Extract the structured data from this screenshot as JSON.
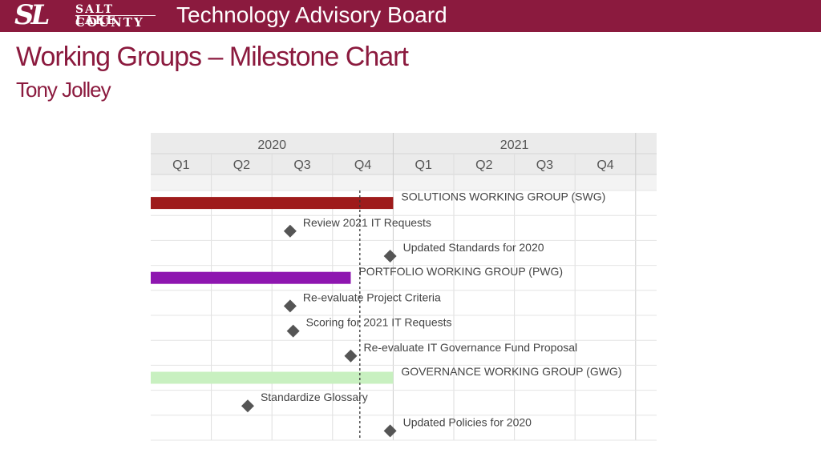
{
  "header": {
    "logo_mark": "SL",
    "logo_line1": "SALT LAKE",
    "logo_line2": "COUNTY",
    "board_title": "Technology Advisory Board"
  },
  "title": "Working Groups – Milestone Chart",
  "author": "Tony Jolley",
  "colors": {
    "header_bg": "#8b1a3e",
    "title_text": "#8b1a3e",
    "swg_bar": "#9e1b1b",
    "pwg_bar": "#8e16b0",
    "gwg_bar": "#c8f0c0",
    "milestone": "#555555"
  },
  "chart_data": {
    "type": "gantt",
    "years": [
      "2020",
      "2021"
    ],
    "quarters": [
      "Q1",
      "Q2",
      "Q3",
      "Q4",
      "Q1",
      "Q2",
      "Q3",
      "Q4"
    ],
    "today_marker": 3.45,
    "grid": true,
    "rows": [
      {
        "kind": "group",
        "label": "SOLUTIONS WORKING GROUP (SWG)",
        "start": 0,
        "end": 4,
        "color": "#9e1b1b"
      },
      {
        "kind": "milestone",
        "label": "Review 2021 IT Requests",
        "at": 2.3
      },
      {
        "kind": "milestone",
        "label": "Updated Standards for 2020",
        "at": 3.95
      },
      {
        "kind": "group",
        "label": "PORTFOLIO WORKING GROUP (PWG)",
        "start": 0,
        "end": 3.3,
        "color": "#8e16b0"
      },
      {
        "kind": "milestone",
        "label": "Re-evaluate Project Criteria",
        "at": 2.3
      },
      {
        "kind": "milestone",
        "label": "Scoring for 2021 IT Requests",
        "at": 2.35
      },
      {
        "kind": "milestone",
        "label": "Re-evaluate IT Governance Fund Proposal",
        "at": 3.3
      },
      {
        "kind": "group",
        "label": "GOVERNANCE WORKING GROUP (GWG)",
        "start": 0,
        "end": 4,
        "color": "#c8f0c0"
      },
      {
        "kind": "milestone",
        "label": "Standardize Glossary",
        "at": 1.6
      },
      {
        "kind": "milestone",
        "label": "Updated Policies for 2020",
        "at": 3.95
      }
    ]
  }
}
